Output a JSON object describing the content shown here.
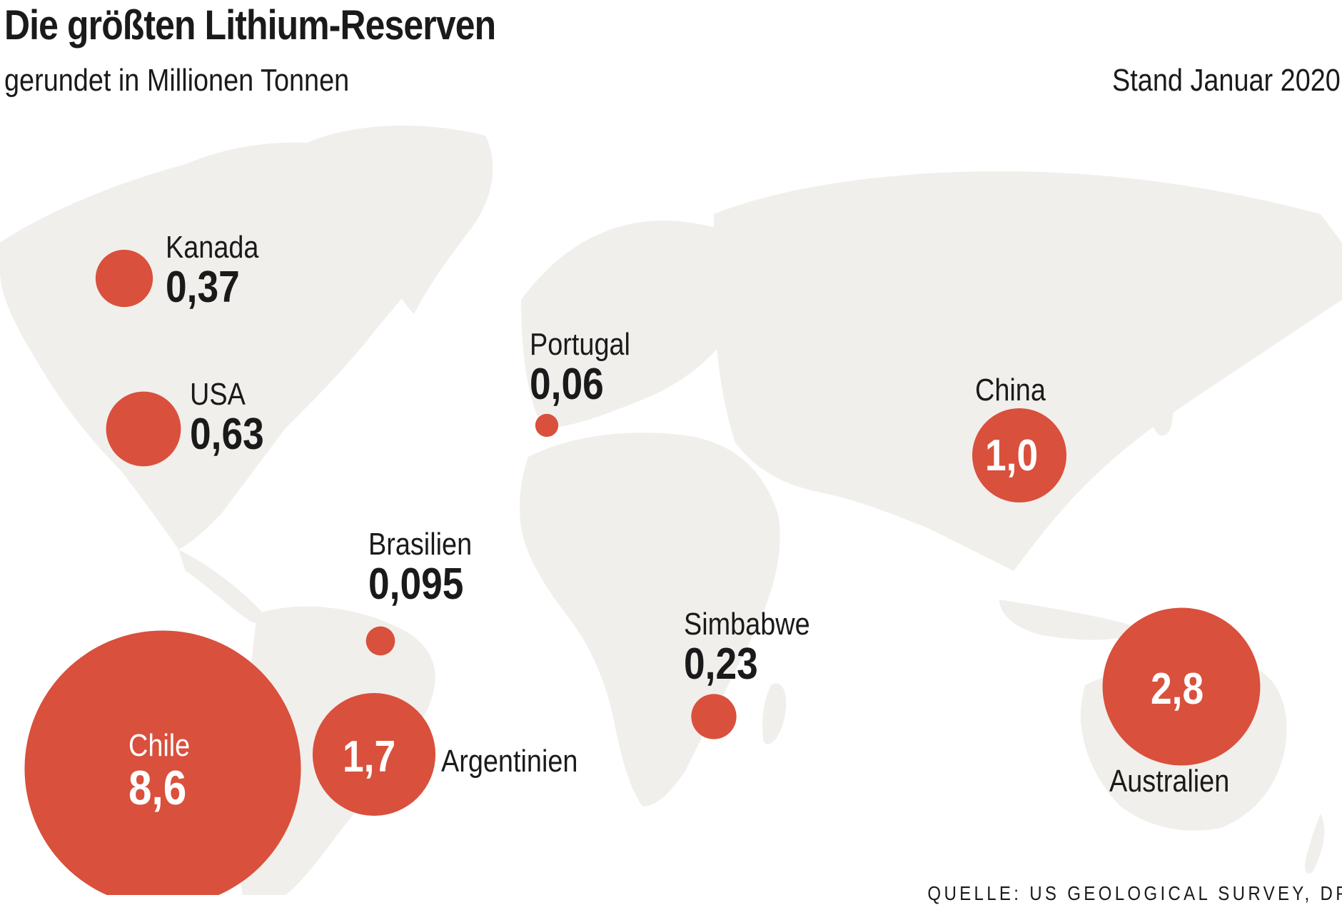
{
  "header": {
    "title": "Die größten Lithium-Reserven",
    "subtitle": "gerundet in Millionen Tonnen",
    "date": "Stand Januar 2020"
  },
  "footer": {
    "source": "QUELLE: US GEOLOGICAL SURVEY, DPA"
  },
  "colors": {
    "bubble": "#d9503c",
    "land": "#f1efec",
    "text": "#1a1a1a"
  },
  "chart_data": {
    "type": "bubble-map",
    "title": "Die größten Lithium-Reserven",
    "subtitle": "gerundet in Millionen Tonnen",
    "unit": "Millionen Tonnen",
    "note": "Stand Januar 2020",
    "series": [
      {
        "name": "Kanada",
        "value": 0.37,
        "label": "0,37"
      },
      {
        "name": "USA",
        "value": 0.63,
        "label": "0,63"
      },
      {
        "name": "Portugal",
        "value": 0.06,
        "label": "0,06"
      },
      {
        "name": "China",
        "value": 1.0,
        "label": "1,0"
      },
      {
        "name": "Brasilien",
        "value": 0.095,
        "label": "0,095"
      },
      {
        "name": "Simbabwe",
        "value": 0.23,
        "label": "0,23"
      },
      {
        "name": "Chile",
        "value": 8.6,
        "label": "8,6"
      },
      {
        "name": "Argentinien",
        "value": 1.7,
        "label": "1,7"
      },
      {
        "name": "Australien",
        "value": 2.8,
        "label": "2,8"
      }
    ]
  }
}
